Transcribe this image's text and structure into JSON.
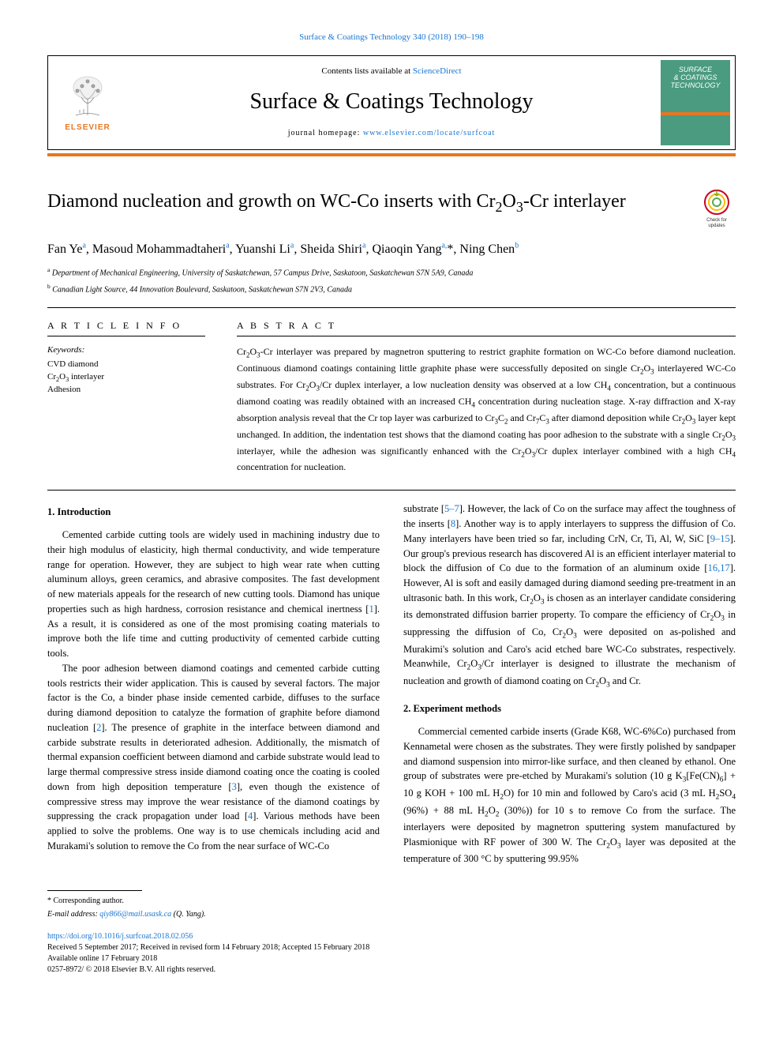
{
  "top_link": "Surface & Coatings Technology 340 (2018) 190–198",
  "header": {
    "contents_prefix": "Contents lists available at ",
    "contents_link": "ScienceDirect",
    "journal_name": "Surface & Coatings Technology",
    "homepage_prefix": "journal homepage: ",
    "homepage_link": "www.elsevier.com/locate/surfcoat",
    "elsevier_label": "ELSEVIER",
    "cover_line1": "SURFACE",
    "cover_line2": "& COATINGS",
    "cover_line3": "TECHNOLOGY"
  },
  "title_html": "Diamond nucleation and growth on WC-Co inserts with Cr<sub>2</sub>O<sub>3</sub>-Cr interlayer",
  "check_badge": {
    "line1": "Check for",
    "line2": "updates"
  },
  "authors_html": "Fan Ye<sup>a</sup>, Masoud Mohammadtaheri<sup>a</sup>, Yuanshi Li<sup>a</sup>, Sheida Shiri<sup>a</sup>, Qiaoqin Yang<sup>a,</sup>*, Ning Chen<sup>b</sup>",
  "affiliations": [
    {
      "sup": "a",
      "text": "Department of Mechanical Engineering, University of Saskatchewan, 57 Campus Drive, Saskatoon, Saskatchewan S7N 5A9, Canada"
    },
    {
      "sup": "b",
      "text": "Canadian Light Source, 44 Innovation Boulevard, Saskatoon, Saskatchewan S7N 2V3, Canada"
    }
  ],
  "article_info": {
    "heading": "A R T I C L E  I N F O",
    "keywords_label": "Keywords:",
    "keywords_html": "CVD diamond<br>Cr<sub>2</sub>O<sub>3</sub> interlayer<br>Adhesion"
  },
  "abstract": {
    "heading": "A B S T R A C T",
    "text_html": "Cr<sub>2</sub>O<sub>3</sub>-Cr interlayer was prepared by magnetron sputtering to restrict graphite formation on WC-Co before diamond nucleation. Continuous diamond coatings containing little graphite phase were successfully deposited on single Cr<sub>2</sub>O<sub>3</sub> interlayered WC-Co substrates. For Cr<sub>2</sub>O<sub>3</sub>/Cr duplex interlayer, a low nucleation density was observed at a low CH<sub>4</sub> concentration, but a continuous diamond coating was readily obtained with an increased CH<sub>4</sub> concentration during nucleation stage. X-ray diffraction and X-ray absorption analysis reveal that the Cr top layer was carburized to Cr<sub>3</sub>C<sub>2</sub> and Cr<sub>7</sub>C<sub>3</sub> after diamond deposition while Cr<sub>2</sub>O<sub>3</sub> layer kept unchanged. In addition, the indentation test shows that the diamond coating has poor adhesion to the substrate with a single Cr<sub>2</sub>O<sub>3</sub> interlayer, while the adhesion was significantly enhanced with the Cr<sub>2</sub>O<sub>3</sub>/Cr duplex interlayer combined with a high CH<sub>4</sub> concentration for nucleation."
  },
  "sections": {
    "intro_heading": "1. Introduction",
    "intro_p1": "Cemented carbide cutting tools are widely used in machining industry due to their high modulus of elasticity, high thermal conductivity, and wide temperature range for operation. However, they are subject to high wear rate when cutting aluminum alloys, green ceramics, and abrasive composites. The fast development of new materials appeals for the research of new cutting tools. Diamond has unique properties such as high hardness, corrosion resistance and chemical inertness [<span class=\"cite\">1</span>]. As a result, it is considered as one of the most promising coating materials to improve both the life time and cutting productivity of cemented carbide cutting tools.",
    "intro_p2": "The poor adhesion between diamond coatings and cemented carbide cutting tools restricts their wider application. This is caused by several factors. The major factor is the Co, a binder phase inside cemented carbide, diffuses to the surface during diamond deposition to catalyze the formation of graphite before diamond nucleation [<span class=\"cite\">2</span>]. The presence of graphite in the interface between diamond and carbide substrate results in deteriorated adhesion. Additionally, the mismatch of thermal expansion coefficient between diamond and carbide substrate would lead to large thermal compressive stress inside diamond coating once the coating is cooled down from high deposition temperature [<span class=\"cite\">3</span>], even though the existence of compressive stress may improve the wear resistance of the diamond coatings by suppressing the crack propagation under load [<span class=\"cite\">4</span>]. Various methods have been applied to solve the problems. One way is to use chemicals including acid and Murakami's solution to remove the Co from the near surface of WC-Co",
    "intro_p3": "substrate [<span class=\"cite\">5–7</span>]. However, the lack of Co on the surface may affect the toughness of the inserts [<span class=\"cite\">8</span>]. Another way is to apply interlayers to suppress the diffusion of Co. Many interlayers have been tried so far, including CrN, Cr, Ti, Al, W, SiC [<span class=\"cite\">9–15</span>]. Our group's previous research has discovered Al is an efficient interlayer material to block the diffusion of Co due to the formation of an aluminum oxide [<span class=\"cite\">16,17</span>]. However, Al is soft and easily damaged during diamond seeding pre-treatment in an ultrasonic bath. In this work, Cr<sub>2</sub>O<sub>3</sub> is chosen as an interlayer candidate considering its demonstrated diffusion barrier property. To compare the efficiency of Cr<sub>2</sub>O<sub>3</sub> in suppressing the diffusion of Co, Cr<sub>2</sub>O<sub>3</sub> were deposited on as-polished and Murakimi's solution and Caro's acid etched bare WC-Co substrates, respectively. Meanwhile, Cr<sub>2</sub>O<sub>3</sub>/Cr interlayer is designed to illustrate the mechanism of nucleation and growth of diamond coating on Cr<sub>2</sub>O<sub>3</sub> and Cr.",
    "methods_heading": "2. Experiment methods",
    "methods_p1": "Commercial cemented carbide inserts (Grade K68, WC-6%Co) purchased from Kennametal were chosen as the substrates. They were firstly polished by sandpaper and diamond suspension into mirror-like surface, and then cleaned by ethanol. One group of substrates were pre-etched by Murakami's solution (10 g K<sub>3</sub>[Fe(CN)<sub>6</sub>] + 10 g KOH + 100 mL H<sub>2</sub>O) for 10 min and followed by Caro's acid (3 mL H<sub>2</sub>SO<sub>4</sub> (96%) + 88 mL H<sub>2</sub>O<sub>2</sub> (30%)) for 10 s to remove Co from the surface. The interlayers were deposited by magnetron sputtering system manufactured by Plasmionique with RF power of 300 W. The Cr<sub>2</sub>O<sub>3</sub> layer was deposited at the temperature of 300 °C by sputtering 99.95%"
  },
  "footer": {
    "corresp": "* Corresponding author.",
    "email_label": "E-mail address: ",
    "email": "qiy866@mail.usask.ca",
    "email_suffix": " (Q. Yang).",
    "doi": "https://doi.org/10.1016/j.surfcoat.2018.02.056",
    "received": "Received 5 September 2017; Received in revised form 14 February 2018; Accepted 15 February 2018",
    "available": "Available online 17 February 2018",
    "copyright": "0257-8972/ © 2018 Elsevier B.V. All rights reserved."
  },
  "colors": {
    "link": "#1976d2",
    "orange": "#e87722",
    "cover_green": "#4a9b7f"
  }
}
